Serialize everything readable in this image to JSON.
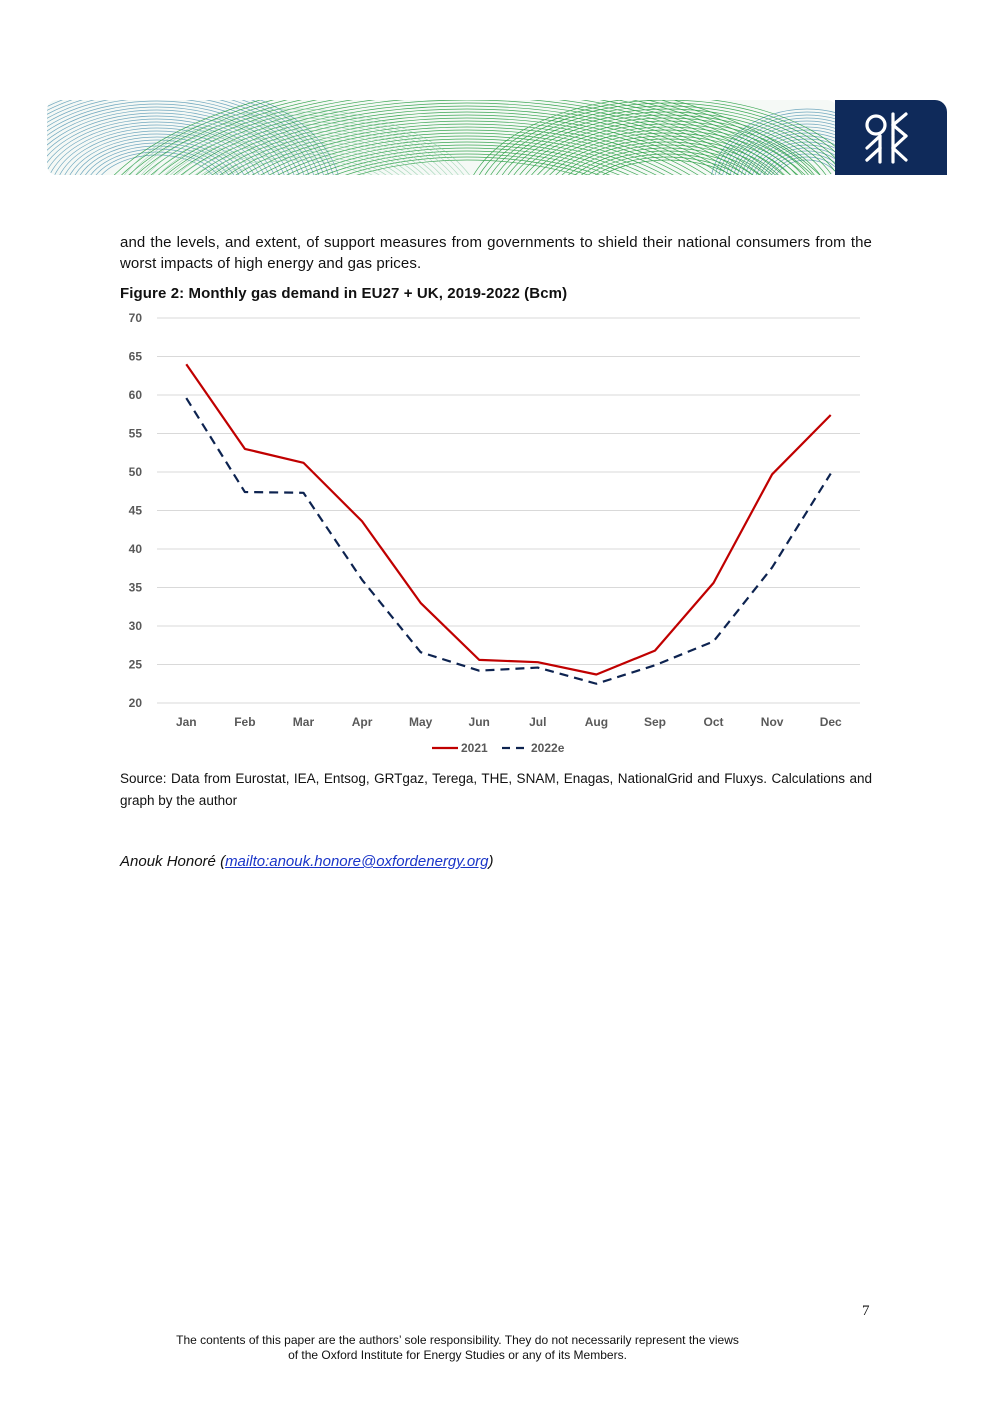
{
  "header": {
    "logo_name": "OIES logo"
  },
  "intro_text": "and the levels, and extent, of support measures from governments to shield their national consumers from the worst impacts of high energy and gas prices.",
  "figure_title": "Figure 2: Monthly gas demand in EU27 + UK, 2019-2022 (Bcm)",
  "chart_data": {
    "type": "line",
    "title": "Figure 2: Monthly gas demand in EU27 + UK, 2019-2022 (Bcm)",
    "xlabel": "",
    "ylabel": "",
    "categories": [
      "Jan",
      "Feb",
      "Mar",
      "Apr",
      "May",
      "Jun",
      "Jul",
      "Aug",
      "Sep",
      "Oct",
      "Nov",
      "Dec"
    ],
    "ylim": [
      20,
      70
    ],
    "yticks": [
      20,
      25,
      30,
      35,
      40,
      45,
      50,
      55,
      60,
      65,
      70
    ],
    "grid": true,
    "legend": "bottom-center",
    "series": [
      {
        "name": "2021",
        "color": "#c00000",
        "style": "solid",
        "values": [
          64.0,
          53.0,
          51.2,
          43.6,
          33.0,
          25.6,
          25.3,
          23.7,
          26.8,
          35.6,
          49.7,
          57.4
        ]
      },
      {
        "name": "2022e",
        "color": "#0d2350",
        "style": "dashed",
        "values": [
          59.6,
          47.4,
          47.3,
          36.0,
          26.6,
          24.2,
          24.6,
          22.5,
          24.9,
          28.0,
          37.6,
          49.8
        ]
      }
    ]
  },
  "source_text": "Source: Data from Eurostat, IEA, Entsog, GRTgaz, Terega, THE, SNAM, Enagas, NationalGrid and Fluxys. Calculations and graph by the author",
  "author": {
    "name": "Anouk Honoré (",
    "email_link": "mailto:anouk.honore@oxfordenergy.org",
    "close": ")"
  },
  "page_number": "7",
  "footer": {
    "line1": "The contents of this paper are the authors’ sole responsibility. They do not necessarily represent the views",
    "line2": "of the Oxford Institute for Energy Studies or any of its Members."
  },
  "colors": {
    "accent_navy": "#0f2a5a",
    "green": "#1e9a3a",
    "teal": "#3a86a8"
  }
}
